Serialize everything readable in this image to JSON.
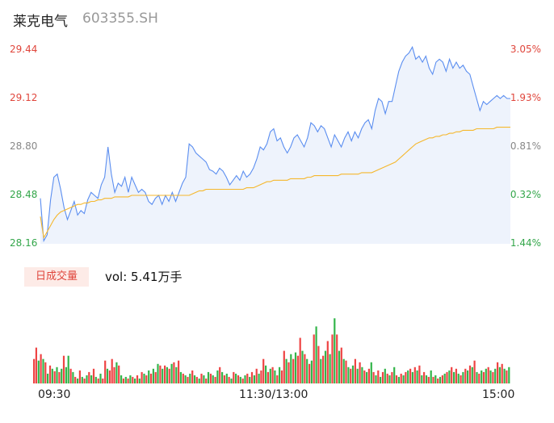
{
  "header": {
    "name": "莱克电气",
    "code": "603355.SH"
  },
  "volume_panel": {
    "tab_label": "日成交量",
    "volume_text": "vol: 5.41万手"
  },
  "colors": {
    "price": "#5b8ef0",
    "avg": "#f5b72c",
    "up": "#ee4444",
    "down": "#33b54a",
    "fill": "#eef3fc"
  },
  "chart_data": {
    "type": "line",
    "y_left_ticks": [
      "29.44",
      "29.12",
      "28.80",
      "28.48",
      "28.16"
    ],
    "y_right_ticks": [
      "3.05%",
      "1.93%",
      "0.81%",
      "-0.32%",
      "-1.44%"
    ],
    "x_ticks": [
      "09:30",
      "11:30/13:00",
      "15:00"
    ],
    "ylim": [
      28.16,
      29.44
    ],
    "series": [],
    "price": [
      28.46,
      28.18,
      28.22,
      28.45,
      28.6,
      28.62,
      28.52,
      28.4,
      28.32,
      28.38,
      28.44,
      28.35,
      28.38,
      28.36,
      28.45,
      28.5,
      28.48,
      28.46,
      28.55,
      28.6,
      28.8,
      28.62,
      28.5,
      28.56,
      28.54,
      28.6,
      28.5,
      28.6,
      28.55,
      28.5,
      28.52,
      28.5,
      28.44,
      28.42,
      28.46,
      28.48,
      28.42,
      28.48,
      28.44,
      28.5,
      28.44,
      28.5,
      28.56,
      28.6,
      28.82,
      28.8,
      28.76,
      28.74,
      28.72,
      28.7,
      28.65,
      28.64,
      28.62,
      28.66,
      28.64,
      28.6,
      28.55,
      28.58,
      28.61,
      28.58,
      28.64,
      28.6,
      28.62,
      28.66,
      28.72,
      28.8,
      28.78,
      28.82,
      28.9,
      28.92,
      28.84,
      28.86,
      28.8,
      28.76,
      28.8,
      28.86,
      28.88,
      28.84,
      28.8,
      28.86,
      28.96,
      28.94,
      28.9,
      28.94,
      28.92,
      28.86,
      28.8,
      28.88,
      28.84,
      28.8,
      28.86,
      28.9,
      28.84,
      28.9,
      28.86,
      28.92,
      28.96,
      28.98,
      28.92,
      29.04,
      29.12,
      29.1,
      29.02,
      29.1,
      29.1,
      29.2,
      29.3,
      29.36,
      29.4,
      29.42,
      29.46,
      29.38,
      29.4,
      29.36,
      29.4,
      29.32,
      29.28,
      29.36,
      29.38,
      29.36,
      29.3,
      29.38,
      29.32,
      29.36,
      29.32,
      29.34,
      29.3,
      29.28,
      29.2,
      29.12,
      29.04,
      29.1,
      29.08,
      29.1,
      29.12,
      29.14,
      29.12,
      29.14,
      29.12,
      29.12
    ],
    "avg": [
      28.34,
      28.2,
      28.24,
      28.28,
      28.32,
      28.35,
      28.37,
      28.38,
      28.39,
      28.4,
      28.41,
      28.42,
      28.42,
      28.43,
      28.43,
      28.44,
      28.44,
      28.45,
      28.45,
      28.46,
      28.46,
      28.46,
      28.47,
      28.47,
      28.47,
      28.47,
      28.47,
      28.48,
      28.48,
      28.48,
      28.48,
      28.48,
      28.48,
      28.48,
      28.48,
      28.48,
      28.48,
      28.48,
      28.48,
      28.48,
      28.48,
      28.48,
      28.48,
      28.48,
      28.48,
      28.49,
      28.5,
      28.51,
      28.51,
      28.52,
      28.52,
      28.52,
      28.52,
      28.52,
      28.52,
      28.52,
      28.52,
      28.52,
      28.52,
      28.52,
      28.52,
      28.53,
      28.53,
      28.53,
      28.54,
      28.55,
      28.56,
      28.57,
      28.57,
      28.58,
      28.58,
      28.58,
      28.58,
      28.58,
      28.59,
      28.59,
      28.59,
      28.59,
      28.59,
      28.6,
      28.6,
      28.61,
      28.61,
      28.61,
      28.61,
      28.61,
      28.61,
      28.61,
      28.61,
      28.62,
      28.62,
      28.62,
      28.62,
      28.62,
      28.62,
      28.63,
      28.63,
      28.63,
      28.63,
      28.64,
      28.65,
      28.66,
      28.67,
      28.68,
      28.69,
      28.7,
      28.72,
      28.74,
      28.76,
      28.78,
      28.8,
      28.82,
      28.83,
      28.84,
      28.85,
      28.86,
      28.86,
      28.87,
      28.87,
      28.88,
      28.88,
      28.89,
      28.89,
      28.9,
      28.9,
      28.91,
      28.91,
      28.91,
      28.91,
      28.92,
      28.92,
      28.92,
      28.92,
      28.92,
      28.92,
      28.93,
      28.93,
      28.93,
      28.93,
      28.93
    ],
    "volume": [
      [
        30,
        "up"
      ],
      [
        44,
        "up"
      ],
      [
        28,
        "down"
      ],
      [
        36,
        "up"
      ],
      [
        30,
        "down"
      ],
      [
        26,
        "up"
      ],
      [
        12,
        "down"
      ],
      [
        22,
        "up"
      ],
      [
        18,
        "down"
      ],
      [
        15,
        "up"
      ],
      [
        20,
        "down"
      ],
      [
        14,
        "up"
      ],
      [
        18,
        "down"
      ],
      [
        34,
        "up"
      ],
      [
        20,
        "down"
      ],
      [
        34,
        "down"
      ],
      [
        18,
        "up"
      ],
      [
        14,
        "down"
      ],
      [
        8,
        "up"
      ],
      [
        6,
        "down"
      ],
      [
        16,
        "up"
      ],
      [
        8,
        "down"
      ],
      [
        6,
        "up"
      ],
      [
        10,
        "down"
      ],
      [
        14,
        "up"
      ],
      [
        10,
        "down"
      ],
      [
        18,
        "up"
      ],
      [
        8,
        "down"
      ],
      [
        6,
        "up"
      ],
      [
        12,
        "down"
      ],
      [
        6,
        "up"
      ],
      [
        28,
        "up"
      ],
      [
        18,
        "down"
      ],
      [
        16,
        "up"
      ],
      [
        30,
        "up"
      ],
      [
        20,
        "up"
      ],
      [
        26,
        "down"
      ],
      [
        22,
        "up"
      ],
      [
        10,
        "down"
      ],
      [
        6,
        "up"
      ],
      [
        8,
        "down"
      ],
      [
        6,
        "up"
      ],
      [
        10,
        "down"
      ],
      [
        8,
        "up"
      ],
      [
        6,
        "down"
      ],
      [
        10,
        "up"
      ],
      [
        6,
        "down"
      ],
      [
        14,
        "up"
      ],
      [
        12,
        "down"
      ],
      [
        10,
        "up"
      ],
      [
        16,
        "down"
      ],
      [
        12,
        "up"
      ],
      [
        18,
        "down"
      ],
      [
        14,
        "up"
      ],
      [
        24,
        "down"
      ],
      [
        22,
        "up"
      ],
      [
        18,
        "down"
      ],
      [
        22,
        "up"
      ],
      [
        20,
        "down"
      ],
      [
        18,
        "up"
      ],
      [
        24,
        "down"
      ],
      [
        26,
        "up"
      ],
      [
        20,
        "down"
      ],
      [
        28,
        "up"
      ],
      [
        14,
        "down"
      ],
      [
        12,
        "up"
      ],
      [
        10,
        "down"
      ],
      [
        8,
        "up"
      ],
      [
        12,
        "down"
      ],
      [
        16,
        "up"
      ],
      [
        10,
        "down"
      ],
      [
        8,
        "up"
      ],
      [
        6,
        "down"
      ],
      [
        12,
        "up"
      ],
      [
        10,
        "down"
      ],
      [
        6,
        "up"
      ],
      [
        14,
        "down"
      ],
      [
        12,
        "up"
      ],
      [
        10,
        "down"
      ],
      [
        8,
        "up"
      ],
      [
        16,
        "down"
      ],
      [
        20,
        "up"
      ],
      [
        14,
        "down"
      ],
      [
        10,
        "up"
      ],
      [
        12,
        "down"
      ],
      [
        8,
        "up"
      ],
      [
        6,
        "down"
      ],
      [
        14,
        "up"
      ],
      [
        12,
        "down"
      ],
      [
        10,
        "up"
      ],
      [
        8,
        "down"
      ],
      [
        6,
        "up"
      ],
      [
        10,
        "down"
      ],
      [
        12,
        "up"
      ],
      [
        8,
        "down"
      ],
      [
        14,
        "up"
      ],
      [
        10,
        "down"
      ],
      [
        18,
        "up"
      ],
      [
        12,
        "down"
      ],
      [
        16,
        "up"
      ],
      [
        30,
        "up"
      ],
      [
        22,
        "down"
      ],
      [
        14,
        "up"
      ],
      [
        18,
        "down"
      ],
      [
        20,
        "up"
      ],
      [
        16,
        "down"
      ],
      [
        10,
        "up"
      ],
      [
        20,
        "down"
      ],
      [
        16,
        "up"
      ],
      [
        40,
        "up"
      ],
      [
        30,
        "down"
      ],
      [
        26,
        "up"
      ],
      [
        36,
        "down"
      ],
      [
        30,
        "up"
      ],
      [
        38,
        "down"
      ],
      [
        34,
        "up"
      ],
      [
        56,
        "up"
      ],
      [
        40,
        "down"
      ],
      [
        36,
        "up"
      ],
      [
        30,
        "down"
      ],
      [
        24,
        "up"
      ],
      [
        28,
        "down"
      ],
      [
        60,
        "up"
      ],
      [
        70,
        "down"
      ],
      [
        46,
        "up"
      ],
      [
        30,
        "down"
      ],
      [
        34,
        "up"
      ],
      [
        40,
        "down"
      ],
      [
        52,
        "up"
      ],
      [
        36,
        "down"
      ],
      [
        60,
        "up"
      ],
      [
        80,
        "down"
      ],
      [
        60,
        "up"
      ],
      [
        40,
        "down"
      ],
      [
        44,
        "up"
      ],
      [
        30,
        "down"
      ],
      [
        28,
        "up"
      ],
      [
        20,
        "down"
      ],
      [
        18,
        "up"
      ],
      [
        22,
        "down"
      ],
      [
        30,
        "up"
      ],
      [
        18,
        "down"
      ],
      [
        26,
        "up"
      ],
      [
        20,
        "down"
      ],
      [
        16,
        "up"
      ],
      [
        14,
        "down"
      ],
      [
        18,
        "up"
      ],
      [
        26,
        "down"
      ],
      [
        14,
        "up"
      ],
      [
        10,
        "down"
      ],
      [
        16,
        "up"
      ],
      [
        8,
        "down"
      ],
      [
        14,
        "up"
      ],
      [
        18,
        "down"
      ],
      [
        12,
        "up"
      ],
      [
        10,
        "down"
      ],
      [
        14,
        "up"
      ],
      [
        20,
        "down"
      ],
      [
        10,
        "up"
      ],
      [
        8,
        "down"
      ],
      [
        12,
        "up"
      ],
      [
        10,
        "down"
      ],
      [
        14,
        "up"
      ],
      [
        16,
        "down"
      ],
      [
        18,
        "up"
      ],
      [
        14,
        "down"
      ],
      [
        20,
        "up"
      ],
      [
        16,
        "down"
      ],
      [
        22,
        "up"
      ],
      [
        10,
        "down"
      ],
      [
        14,
        "up"
      ],
      [
        10,
        "down"
      ],
      [
        8,
        "up"
      ],
      [
        16,
        "down"
      ],
      [
        8,
        "up"
      ],
      [
        10,
        "down"
      ],
      [
        6,
        "up"
      ],
      [
        8,
        "down"
      ],
      [
        10,
        "up"
      ],
      [
        12,
        "down"
      ],
      [
        14,
        "up"
      ],
      [
        16,
        "down"
      ],
      [
        20,
        "up"
      ],
      [
        14,
        "down"
      ],
      [
        18,
        "up"
      ],
      [
        12,
        "down"
      ],
      [
        10,
        "up"
      ],
      [
        14,
        "down"
      ],
      [
        18,
        "up"
      ],
      [
        16,
        "down"
      ],
      [
        22,
        "up"
      ],
      [
        20,
        "down"
      ],
      [
        28,
        "up"
      ],
      [
        14,
        "down"
      ],
      [
        12,
        "up"
      ],
      [
        16,
        "down"
      ],
      [
        14,
        "up"
      ],
      [
        18,
        "down"
      ],
      [
        20,
        "up"
      ],
      [
        16,
        "down"
      ],
      [
        14,
        "up"
      ],
      [
        18,
        "down"
      ],
      [
        26,
        "up"
      ],
      [
        20,
        "down"
      ],
      [
        24,
        "up"
      ],
      [
        18,
        "down"
      ],
      [
        16,
        "up"
      ],
      [
        20,
        "down"
      ]
    ]
  }
}
